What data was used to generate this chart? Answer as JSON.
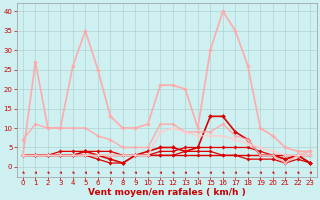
{
  "bg_color": "#cff0f0",
  "grid_color": "#aacccc",
  "xlabel": "Vent moyen/en rafales ( km/h )",
  "xlabel_color": "#cc0000",
  "xlabel_fontsize": 6.5,
  "xticks": [
    0,
    1,
    2,
    3,
    4,
    5,
    6,
    7,
    8,
    9,
    10,
    11,
    12,
    13,
    14,
    15,
    16,
    17,
    18,
    19,
    20,
    21,
    22,
    23
  ],
  "yticks": [
    0,
    5,
    10,
    15,
    20,
    25,
    30,
    35,
    40
  ],
  "ylim": [
    -2.5,
    42
  ],
  "xlim": [
    -0.5,
    23.5
  ],
  "series": [
    {
      "x": [
        0,
        1,
        2,
        3,
        4,
        5,
        6,
        7,
        8,
        9,
        10,
        11,
        12,
        13,
        14,
        15,
        16,
        17,
        18,
        19,
        20,
        21,
        22,
        23
      ],
      "y": [
        3,
        3,
        3,
        3,
        3,
        3,
        3,
        3,
        3,
        3,
        3,
        3,
        3,
        3,
        3,
        3,
        3,
        3,
        3,
        3,
        3,
        3,
        3,
        3
      ],
      "color": "#dd0000",
      "lw": 1.0,
      "marker": "D",
      "ms": 1.8
    },
    {
      "x": [
        0,
        1,
        2,
        3,
        4,
        5,
        6,
        7,
        8,
        9,
        10,
        11,
        12,
        13,
        14,
        15,
        16,
        17,
        18,
        19,
        20,
        21,
        22,
        23
      ],
      "y": [
        3,
        3,
        3,
        3,
        3,
        3,
        2,
        1,
        1,
        3,
        3,
        3,
        3,
        4,
        4,
        4,
        3,
        3,
        2,
        2,
        2,
        1,
        2,
        1
      ],
      "color": "#dd0000",
      "lw": 0.9,
      "marker": "D",
      "ms": 1.8
    },
    {
      "x": [
        0,
        1,
        2,
        3,
        4,
        5,
        6,
        7,
        8,
        9,
        10,
        11,
        12,
        13,
        14,
        15,
        16,
        17,
        18,
        19,
        20,
        21,
        22,
        23
      ],
      "y": [
        3,
        3,
        3,
        3,
        3,
        4,
        3,
        2,
        1,
        3,
        4,
        5,
        5,
        4,
        5,
        13,
        13,
        9,
        7,
        3,
        3,
        2,
        3,
        1
      ],
      "color": "#dd0000",
      "lw": 1.2,
      "marker": "D",
      "ms": 2.2
    },
    {
      "x": [
        0,
        1,
        2,
        3,
        4,
        5,
        6,
        7,
        8,
        9,
        10,
        11,
        12,
        13,
        14,
        15,
        16,
        17,
        18,
        19,
        20,
        21,
        22,
        23
      ],
      "y": [
        3,
        3,
        3,
        4,
        4,
        4,
        4,
        4,
        3,
        3,
        3,
        4,
        4,
        5,
        5,
        5,
        5,
        5,
        5,
        4,
        3,
        2,
        3,
        1
      ],
      "color": "#dd0000",
      "lw": 0.9,
      "marker": "D",
      "ms": 1.8
    },
    {
      "x": [
        0,
        1,
        2,
        3,
        4,
        5,
        6,
        7,
        8,
        9,
        10,
        11,
        12,
        13,
        14,
        15,
        16,
        17,
        18,
        19,
        20,
        21,
        22,
        23
      ],
      "y": [
        7,
        11,
        10,
        10,
        10,
        10,
        8,
        7,
        5,
        5,
        5,
        11,
        11,
        9,
        9,
        9,
        11,
        8,
        7,
        3,
        3,
        1,
        3,
        4
      ],
      "color": "#ffaaaa",
      "lw": 1.0,
      "marker": "D",
      "ms": 1.8
    },
    {
      "x": [
        0,
        1,
        2,
        3,
        4,
        5,
        6,
        7,
        8,
        9,
        10,
        11,
        12,
        13,
        14,
        15,
        16,
        17,
        18,
        19,
        20,
        21,
        22,
        23
      ],
      "y": [
        3,
        27,
        10,
        10,
        26,
        35,
        25,
        13,
        10,
        10,
        11,
        21,
        21,
        20,
        10,
        30,
        40,
        35,
        26,
        10,
        8,
        5,
        4,
        4
      ],
      "color": "#ffaaaa",
      "lw": 1.2,
      "marker": "D",
      "ms": 2.0
    },
    {
      "x": [
        0,
        1,
        2,
        3,
        4,
        5,
        6,
        7,
        8,
        9,
        10,
        11,
        12,
        13,
        14,
        15,
        16,
        17,
        18,
        19,
        20,
        21,
        22,
        23
      ],
      "y": [
        3,
        3,
        3,
        3,
        3,
        3,
        3,
        3,
        3,
        3,
        3,
        9,
        10,
        9,
        8,
        8,
        8,
        7,
        6,
        5,
        4,
        3,
        3,
        3
      ],
      "color": "#ffcccc",
      "lw": 1.0,
      "marker": "D",
      "ms": 1.8
    }
  ],
  "tick_label_color": "#cc0000",
  "tick_label_fontsize": 5.0
}
